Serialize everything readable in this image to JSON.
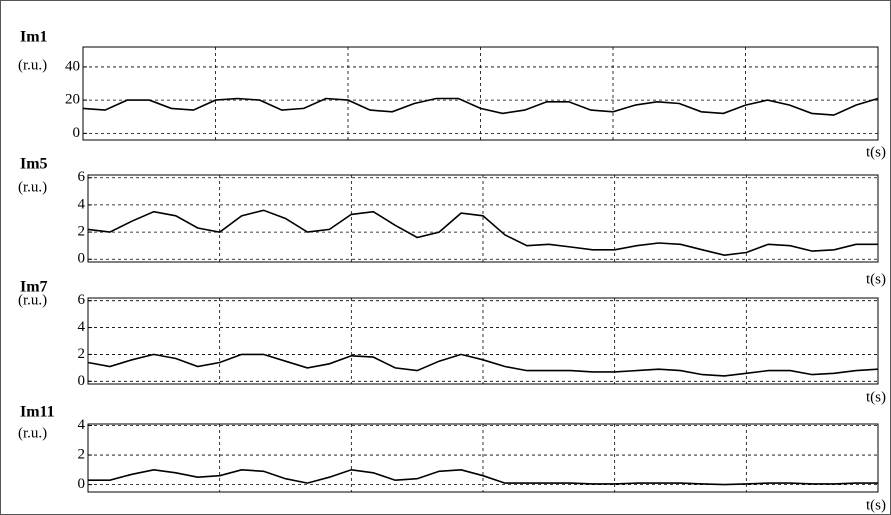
{
  "chart_data": [
    {
      "type": "line",
      "title": "Im1",
      "ylabel": "(r.u.)",
      "xlabel": "t(s)",
      "ylim": [
        -4,
        52
      ],
      "yticks": [
        0,
        20,
        40
      ],
      "grid": true,
      "series": [
        {
          "name": "Im1",
          "color": "#000000",
          "values": [
            15,
            14,
            20,
            20,
            15,
            14,
            20,
            21,
            20,
            14,
            15,
            21,
            20,
            14,
            13,
            18,
            21,
            21,
            15,
            12,
            14,
            19,
            19,
            14,
            13,
            17,
            19,
            18,
            13,
            12,
            17,
            20,
            17,
            12,
            11,
            17,
            21
          ]
        }
      ]
    },
    {
      "type": "line",
      "title": "Im5",
      "ylabel": "(r.u.)",
      "xlabel": "t(s)",
      "ylim": [
        -0.2,
        6.2
      ],
      "yticks": [
        0,
        2,
        4,
        6
      ],
      "grid": true,
      "series": [
        {
          "name": "Im5",
          "color": "#000000",
          "values": [
            2.2,
            2.0,
            2.8,
            3.5,
            3.2,
            2.3,
            2.0,
            3.2,
            3.6,
            3.0,
            2.0,
            2.2,
            3.3,
            3.5,
            2.5,
            1.6,
            2.0,
            3.4,
            3.2,
            1.8,
            1.0,
            1.1,
            0.9,
            0.7,
            0.7,
            1.0,
            1.2,
            1.1,
            0.7,
            0.3,
            0.5,
            1.1,
            1.0,
            0.6,
            0.7,
            1.1,
            1.1
          ]
        }
      ]
    },
    {
      "type": "line",
      "title": "Im7",
      "ylabel": "(r.u.)",
      "xlabel": "t(s)",
      "ylim": [
        -0.2,
        6.2
      ],
      "yticks": [
        0,
        2,
        4,
        6
      ],
      "grid": true,
      "series": [
        {
          "name": "Im7",
          "color": "#000000",
          "values": [
            1.4,
            1.1,
            1.6,
            2.0,
            1.7,
            1.1,
            1.4,
            2.0,
            2.0,
            1.5,
            1.0,
            1.3,
            1.9,
            1.8,
            1.0,
            0.8,
            1.5,
            2.0,
            1.6,
            1.1,
            0.8,
            0.8,
            0.8,
            0.7,
            0.7,
            0.8,
            0.9,
            0.8,
            0.5,
            0.4,
            0.6,
            0.8,
            0.8,
            0.5,
            0.6,
            0.8,
            0.9
          ]
        }
      ]
    },
    {
      "type": "line",
      "title": "Im11",
      "ylabel": "(r.u.)",
      "xlabel": "t(s)",
      "ylim": [
        -0.5,
        4.1
      ],
      "yticks": [
        0,
        2,
        4
      ],
      "grid": true,
      "series": [
        {
          "name": "Im11",
          "color": "#000000",
          "values": [
            0.3,
            0.3,
            0.7,
            1.0,
            0.8,
            0.5,
            0.6,
            1.0,
            0.9,
            0.4,
            0.1,
            0.5,
            1.0,
            0.8,
            0.3,
            0.4,
            0.9,
            1.0,
            0.6,
            0.1,
            0.1,
            0.1,
            0.1,
            0.05,
            0.05,
            0.1,
            0.1,
            0.1,
            0.05,
            0.0,
            0.05,
            0.1,
            0.1,
            0.05,
            0.05,
            0.1,
            0.1
          ]
        }
      ]
    }
  ]
}
